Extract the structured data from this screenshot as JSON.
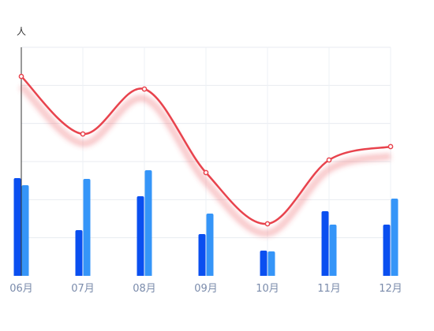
{
  "chart_data": {
    "type": "bar",
    "y_unit": "人",
    "categories": [
      "06月",
      "07月",
      "08月",
      "09月",
      "10月",
      "11月",
      "12月"
    ],
    "series": [
      {
        "type": "bar",
        "color": "#0a4ff0",
        "values": [
          124,
          58,
          101,
          53,
          32,
          82,
          65
        ]
      },
      {
        "type": "bar",
        "color": "#3595f8",
        "values": [
          115,
          123,
          134,
          79,
          31,
          65,
          98
        ]
      },
      {
        "type": "line",
        "color": "#e8434d",
        "smooth": true,
        "values": [
          253,
          180,
          237,
          131,
          66,
          147,
          164
        ]
      }
    ],
    "ylim": [
      0,
      290
    ],
    "grid": true
  }
}
